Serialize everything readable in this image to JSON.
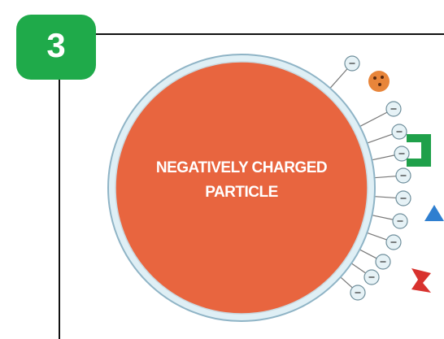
{
  "badge": {
    "label": "3"
  },
  "particle": {
    "label_line1": "NEGATIVELY CHARGED",
    "label_line2": "PARTICLE"
  }
}
